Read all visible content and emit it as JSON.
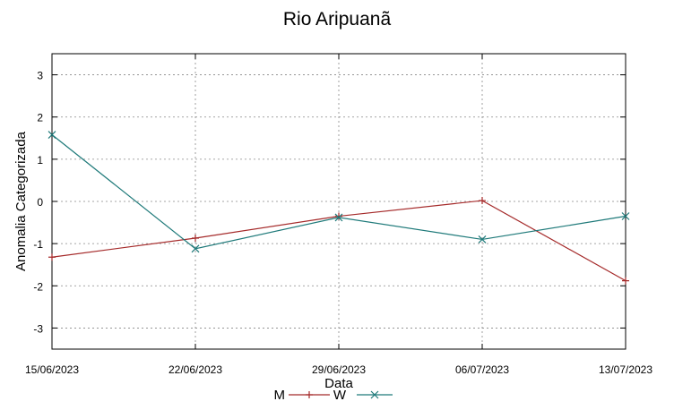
{
  "chart_data": {
    "type": "line",
    "title": "Rio Aripuanã",
    "xlabel": "Data",
    "ylabel": "Anomalia Categorizada",
    "categories": [
      "15/06/2023",
      "22/06/2023",
      "29/06/2023",
      "06/07/2023",
      "13/07/2023"
    ],
    "yticks": [
      3,
      2,
      1,
      0,
      -1,
      -2,
      -3
    ],
    "ytick_labels": [
      "3",
      "2",
      "1",
      "0",
      "-1",
      "-2",
      "-3"
    ],
    "ylim": [
      -3.5,
      3.5
    ],
    "grid": true,
    "legend_position": "bottom",
    "series": [
      {
        "name": "M",
        "color": "#a52a2a",
        "marker": "plus",
        "values": [
          -1.32,
          -0.87,
          -0.35,
          0.02,
          -1.88
        ]
      },
      {
        "name": "W",
        "color": "#1f7a7a",
        "marker": "cross",
        "values": [
          1.58,
          -1.12,
          -0.38,
          -0.9,
          -0.35
        ]
      }
    ]
  }
}
